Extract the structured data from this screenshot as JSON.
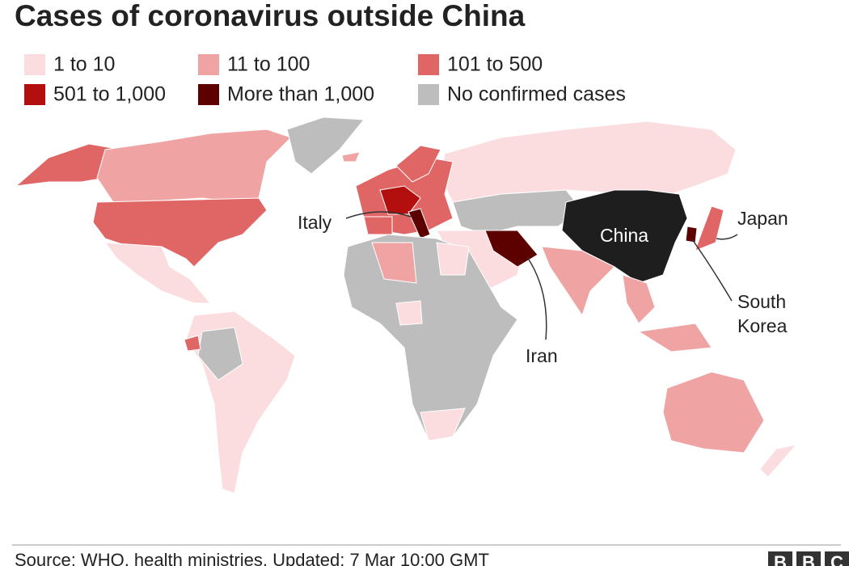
{
  "title": "Cases of coronavirus outside China",
  "legend": [
    {
      "label": "1 to 10",
      "color": "#fbdde0"
    },
    {
      "label": "11 to 100",
      "color": "#f0a3a3"
    },
    {
      "label": "101 to 500",
      "color": "#e06666"
    },
    {
      "label": "501 to 1,000",
      "color": "#b30f0f"
    },
    {
      "label": "More than 1,000",
      "color": "#5c0000"
    },
    {
      "label": "No confirmed cases",
      "color": "#bdbdbd"
    }
  ],
  "annotations": {
    "italy": "Italy",
    "china": "China",
    "japan": "Japan",
    "south_korea": [
      "South",
      "Korea"
    ],
    "iran": "Iran"
  },
  "footer": {
    "source": "Source: WHO, health ministries. Updated: 7 Mar 10:00 GMT",
    "logo": [
      "B",
      "B",
      "C"
    ]
  }
}
